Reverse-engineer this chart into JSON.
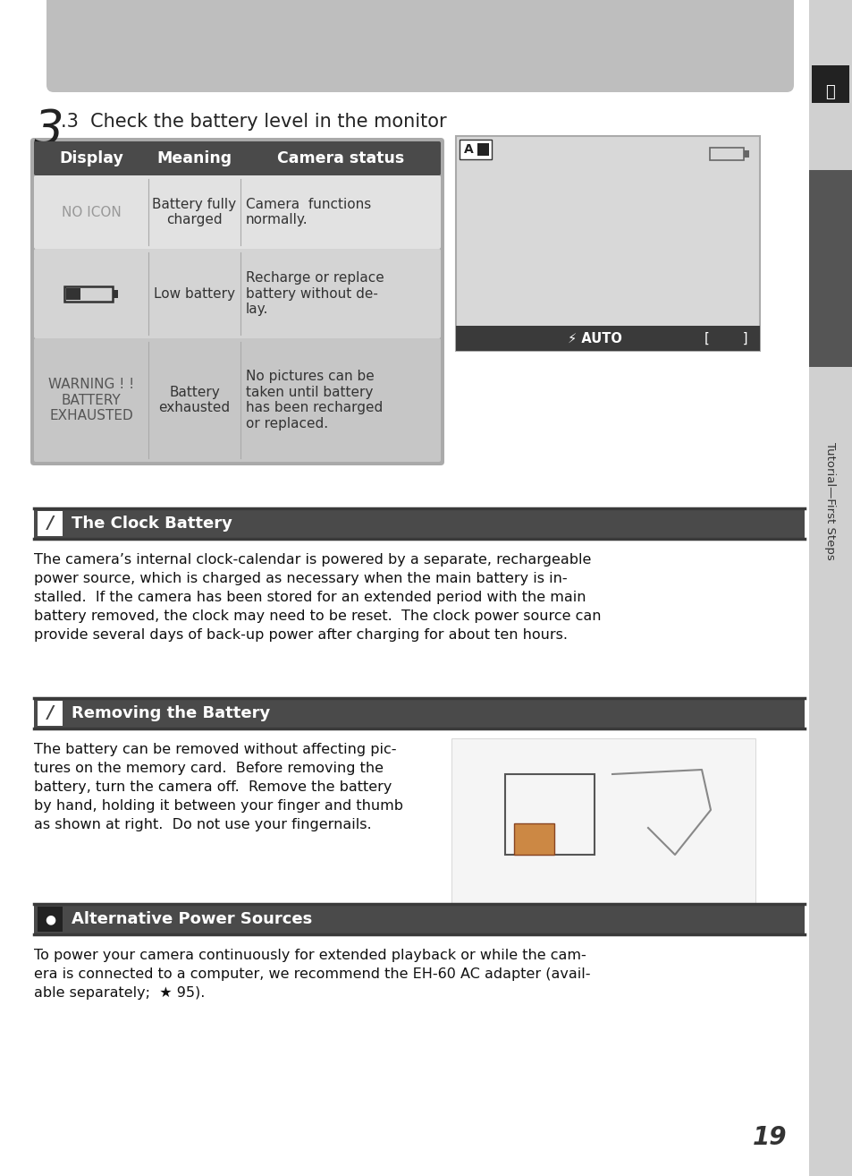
{
  "page_bg": "#ffffff",
  "top_gray_bg": "#bebebe",
  "sidebar_bg": "#d0d0d0",
  "sidebar_dark_bg": "#555555",
  "section_header_bg": "#4a4a4a",
  "section_bar_color": "#3a3a3a",
  "table_header_bg": "#4a4a4a",
  "body_text_color": "#111111",
  "page_number": "19",
  "step_number": "3",
  "step_sub": ".3  Check the battery level in the monitor",
  "table_col1": "Display",
  "table_col2": "Meaning",
  "table_col3": "Camera status",
  "row1_col1": "NO ICON",
  "row1_col2": "Battery fully\ncharged",
  "row1_col3": "Camera  functions\nnormally.",
  "row2_col2": "Low battery",
  "row2_col3": "Recharge or replace\nbattery without de-\nlay.",
  "row3_col1": "WARNING ! !\nBATTERY\nEXHAUSTED",
  "row3_col2": "Battery\nexhausted",
  "row3_col3": "No pictures can be\ntaken until battery\nhas been recharged\nor replaced.",
  "section1_title": "The Clock Battery",
  "section1_body": "The camera’s internal clock-calendar is powered by a separate, rechargeable\npower source, which is charged as necessary when the main battery is in-\nstalled.  If the camera has been stored for an extended period with the main\nbattery removed, the clock may need to be reset.  The clock power source can\nprovide several days of back-up power after charging for about ten hours.",
  "section2_title": "Removing the Battery",
  "section2_body": "The battery can be removed without affecting pic-\ntures on the memory card.  Before removing the\nbattery, turn the camera off.  Remove the battery\nby hand, holding it between your finger and thumb\nas shown at right.  Do not use your fingernails.",
  "section3_title": "Alternative Power Sources",
  "section3_body": "To power your camera continuously for extended playback or while the cam-\nera is connected to a computer, we recommend the EH-60 AC adapter (avail-\nable separately;  ↯ 95).",
  "sidebar_text": "Tutorial—First Steps"
}
